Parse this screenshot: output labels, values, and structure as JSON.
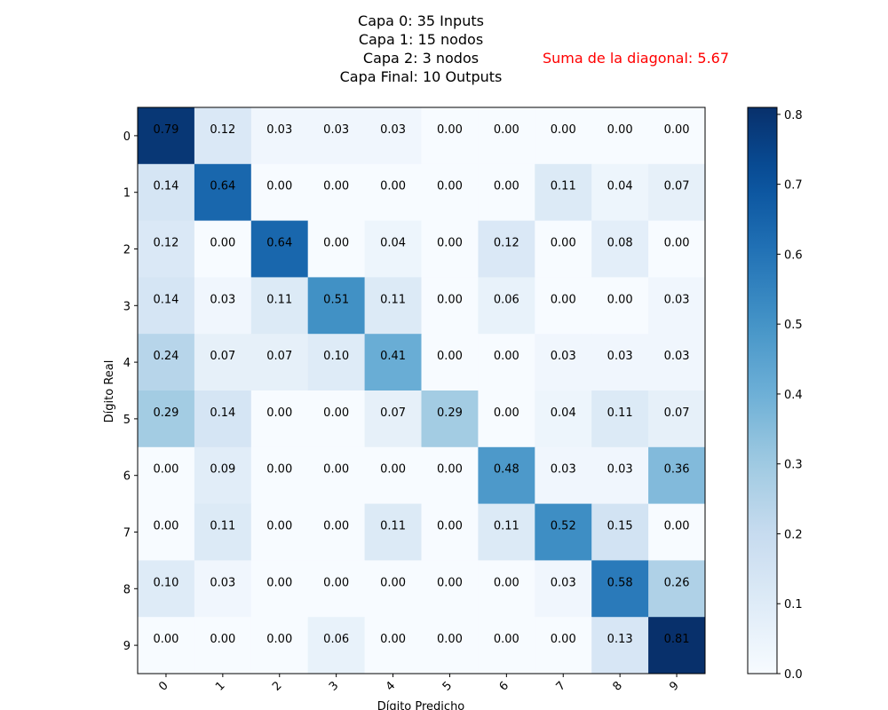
{
  "chart_data": {
    "type": "heatmap",
    "title_lines": [
      "Capa 0: 35 Inputs",
      "Capa 1: 15 nodos",
      "Capa 2: 3 nodos",
      "Capa Final: 10 Outputs"
    ],
    "annotation": "Suma de la diagonal: 5.67",
    "annotation_color": "#ff0000",
    "xlabel": "Dígito Predicho",
    "ylabel": "Dígito Real",
    "x_categories": [
      "0",
      "1",
      "2",
      "3",
      "4",
      "5",
      "6",
      "7",
      "8",
      "9"
    ],
    "y_categories": [
      "0",
      "1",
      "2",
      "3",
      "4",
      "5",
      "6",
      "7",
      "8",
      "9"
    ],
    "values": [
      [
        0.79,
        0.12,
        0.03,
        0.03,
        0.03,
        0.0,
        0.0,
        0.0,
        0.0,
        0.0
      ],
      [
        0.14,
        0.64,
        0.0,
        0.0,
        0.0,
        0.0,
        0.0,
        0.11,
        0.04,
        0.07
      ],
      [
        0.12,
        0.0,
        0.64,
        0.0,
        0.04,
        0.0,
        0.12,
        0.0,
        0.08,
        0.0
      ],
      [
        0.14,
        0.03,
        0.11,
        0.51,
        0.11,
        0.0,
        0.06,
        0.0,
        0.0,
        0.03
      ],
      [
        0.24,
        0.07,
        0.07,
        0.1,
        0.41,
        0.0,
        0.0,
        0.03,
        0.03,
        0.03
      ],
      [
        0.29,
        0.14,
        0.0,
        0.0,
        0.07,
        0.29,
        0.0,
        0.04,
        0.11,
        0.07
      ],
      [
        0.0,
        0.09,
        0.0,
        0.0,
        0.0,
        0.0,
        0.48,
        0.03,
        0.03,
        0.36
      ],
      [
        0.0,
        0.11,
        0.0,
        0.0,
        0.11,
        0.0,
        0.11,
        0.52,
        0.15,
        0.0
      ],
      [
        0.1,
        0.03,
        0.0,
        0.0,
        0.0,
        0.0,
        0.0,
        0.03,
        0.58,
        0.26
      ],
      [
        0.0,
        0.0,
        0.0,
        0.06,
        0.0,
        0.0,
        0.0,
        0.0,
        0.13,
        0.81
      ]
    ],
    "colormap": "Blues",
    "colorbar": {
      "min": 0.0,
      "max": 0.81,
      "ticks": [
        "0.0",
        "0.1",
        "0.2",
        "0.3",
        "0.4",
        "0.5",
        "0.6",
        "0.7",
        "0.8"
      ]
    },
    "grid": false
  }
}
